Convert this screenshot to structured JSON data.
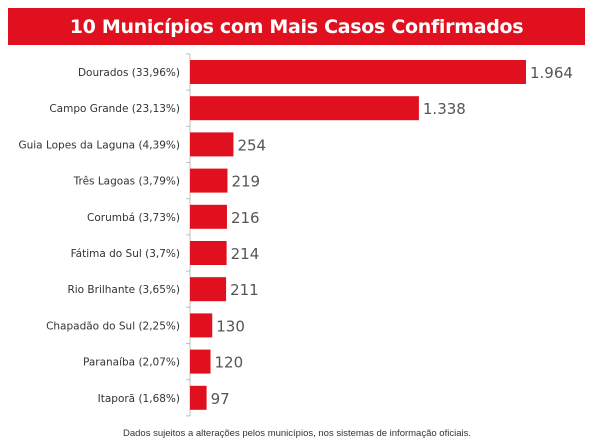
{
  "title": "10 Municípios com Mais Casos Confirmados",
  "footnote": "Dados sujeitos a alterações pelos municípios, nos sistemas de informação oficiais.",
  "colors": {
    "bar": "#e0101e",
    "banner": "#e0101e",
    "category_label": "#333333",
    "value_label": "#555555"
  },
  "chart_data": {
    "type": "bar",
    "orientation": "horizontal",
    "title": "10 Municípios com Mais Casos Confirmados",
    "xlabel": "",
    "ylabel": "",
    "xlim": [
      0,
      1964
    ],
    "grid": false,
    "legend": "none",
    "categories": [
      "Dourados (33,96%)",
      "Campo Grande (23,13%)",
      "Guia Lopes da Laguna (4,39%)",
      "Três Lagoas (3,79%)",
      "Corumbá (3,73%)",
      "Fátima do Sul (3,7%)",
      "Rio Brilhante (3,65%)",
      "Chapadão do Sul (2,25%)",
      "Paranaíba (2,07%)",
      "Itaporã (1,68%)"
    ],
    "values": [
      1964,
      1338,
      254,
      219,
      216,
      214,
      211,
      130,
      120,
      97
    ],
    "value_labels": [
      "1.964",
      "1.338",
      "254",
      "219",
      "216",
      "214",
      "211",
      "130",
      "120",
      "97"
    ]
  }
}
